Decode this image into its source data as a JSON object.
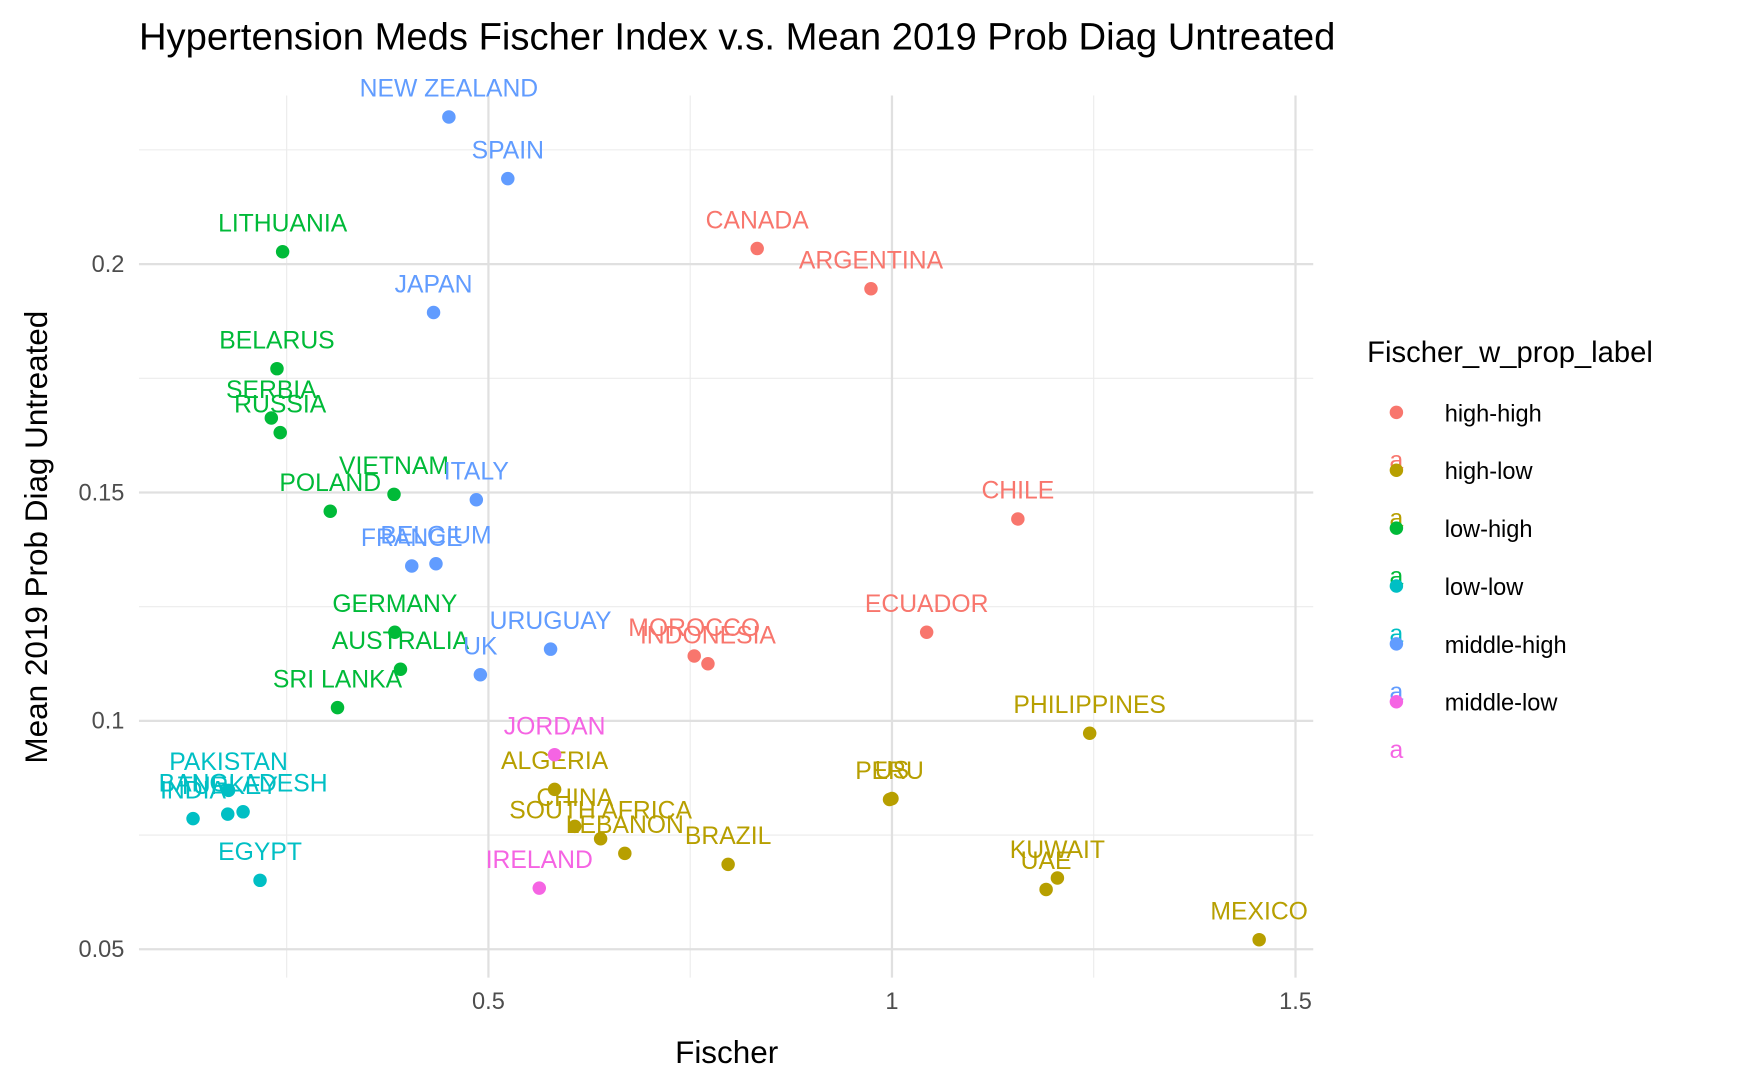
{
  "chart_data": {
    "type": "scatter",
    "title": "Hypertension Meds Fischer Index v.s. Mean 2019 Prob Diag Untreated",
    "x_label": "Fischer",
    "y_label": "Mean 2019 Prob Diag Untreated",
    "legend_title": "Fischer_w_prop_label",
    "legend_key_text": "a",
    "xlim": [
      0.067,
      1.522
    ],
    "ylim": [
      0.0438,
      0.2369
    ],
    "xticks": [
      0.5,
      1.0,
      1.5
    ],
    "yticks": [
      0.05,
      0.1,
      0.15,
      0.2
    ],
    "minor_xticks": [
      0.25,
      0.75,
      1.25
    ],
    "minor_yticks": [
      0.075,
      0.125,
      0.175,
      0.225
    ],
    "grid": true,
    "legend_position": "right",
    "series": [
      {
        "name": "high-high",
        "color": "#F8766D",
        "labels": [
          "CANADA",
          "ARGENTINA",
          "CHILE",
          "ECUADOR",
          "MOROCCO",
          "INDONESIA"
        ],
        "x": [
          0.833,
          0.974,
          1.156,
          1.043,
          0.755,
          0.772
        ],
        "values": [
          0.2034,
          0.1946,
          0.1442,
          0.1194,
          0.1142,
          0.1125
        ]
      },
      {
        "name": "high-low",
        "color": "#B79F00",
        "labels": [
          "PHILIPPINES",
          "MEXICO",
          "KUWAIT",
          "UAE",
          "US",
          "PERU",
          "ALGERIA",
          "CHINA",
          "SOUTH AFRICA",
          "LEBANON",
          "BRAZIL"
        ],
        "x": [
          1.245,
          1.455,
          1.205,
          1.191,
          1.0,
          0.997,
          0.582,
          0.607,
          0.639,
          0.669,
          0.797
        ],
        "values": [
          0.0973,
          0.0521,
          0.0656,
          0.0631,
          0.083,
          0.0828,
          0.085,
          0.0769,
          0.0742,
          0.071,
          0.0686
        ]
      },
      {
        "name": "low-high",
        "color": "#00BA38",
        "labels": [
          "LITHUANIA",
          "BELARUS",
          "SERBIA",
          "RUSSIA",
          "VIETNAM",
          "POLAND",
          "GERMANY",
          "AUSTRALIA",
          "SRI LANKA"
        ],
        "x": [
          0.245,
          0.238,
          0.231,
          0.242,
          0.383,
          0.304,
          0.384,
          0.391,
          0.313
        ],
        "values": [
          0.2027,
          0.1771,
          0.1663,
          0.1631,
          0.1496,
          0.1459,
          0.1194,
          0.1113,
          0.1029
        ]
      },
      {
        "name": "low-low",
        "color": "#00BFC4",
        "labels": [
          "PAKISTAN",
          "BANGLADESH",
          "INDIA",
          "TURKEY",
          "EGYPT"
        ],
        "x": [
          0.178,
          0.196,
          0.134,
          0.177,
          0.217
        ],
        "values": [
          0.0848,
          0.0801,
          0.0786,
          0.0796,
          0.0651
        ]
      },
      {
        "name": "middle-high",
        "color": "#619CFF",
        "labels": [
          "NEW ZEALAND",
          "SPAIN",
          "JAPAN",
          "ITALY",
          "BELGIUM",
          "FRANCE",
          "URUGUAY",
          "UK"
        ],
        "x": [
          0.451,
          0.524,
          0.432,
          0.485,
          0.435,
          0.405,
          0.577,
          0.49
        ],
        "values": [
          0.2322,
          0.2187,
          0.1894,
          0.1484,
          0.1344,
          0.1339,
          0.1157,
          0.1101
        ]
      },
      {
        "name": "middle-low",
        "color": "#F564E3",
        "labels": [
          "JORDAN",
          "IRELAND"
        ],
        "x": [
          0.582,
          0.563
        ],
        "values": [
          0.0926,
          0.0634
        ]
      }
    ]
  }
}
